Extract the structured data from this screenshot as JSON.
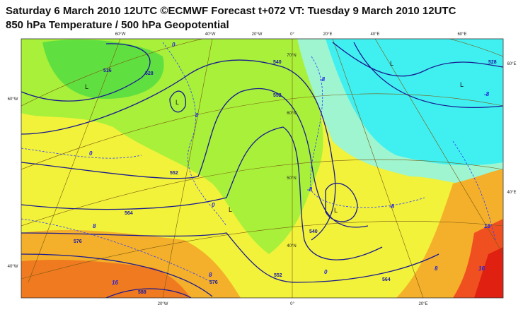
{
  "header": {
    "title": "Saturday 6 March 2010 12UTC ©ECMWF Forecast t+072 VT: Tuesday 9 March 2010 12UTC",
    "subtitle": "850 hPa Temperature / 500 hPa Geopotential"
  },
  "map": {
    "top_labels": [
      "60°W",
      "40°W",
      "20°W",
      "0°",
      "20°E",
      "40°E",
      "60°E"
    ],
    "bottom_labels": [
      "20°W",
      "0°",
      "20°E"
    ],
    "left_labels": [
      "60°W",
      "40°W"
    ],
    "right_labels": [
      "60°E",
      "40°E"
    ],
    "latitude_labels": [
      "70°N",
      "60°N",
      "50°N",
      "40°N"
    ],
    "pressure_centers": [
      "L",
      "L",
      "L",
      "L",
      "L",
      "L"
    ],
    "geopotential_labels": [
      "516",
      "528",
      "540",
      "552",
      "552",
      "564",
      "576",
      "588",
      "540",
      "552",
      "564",
      "576",
      "528"
    ],
    "temperature_labels": [
      "0",
      "0",
      "0",
      "0",
      "-8",
      "-8",
      "-8",
      "-8",
      "8",
      "8",
      "16",
      "16",
      "0",
      "8",
      "16"
    ]
  }
}
